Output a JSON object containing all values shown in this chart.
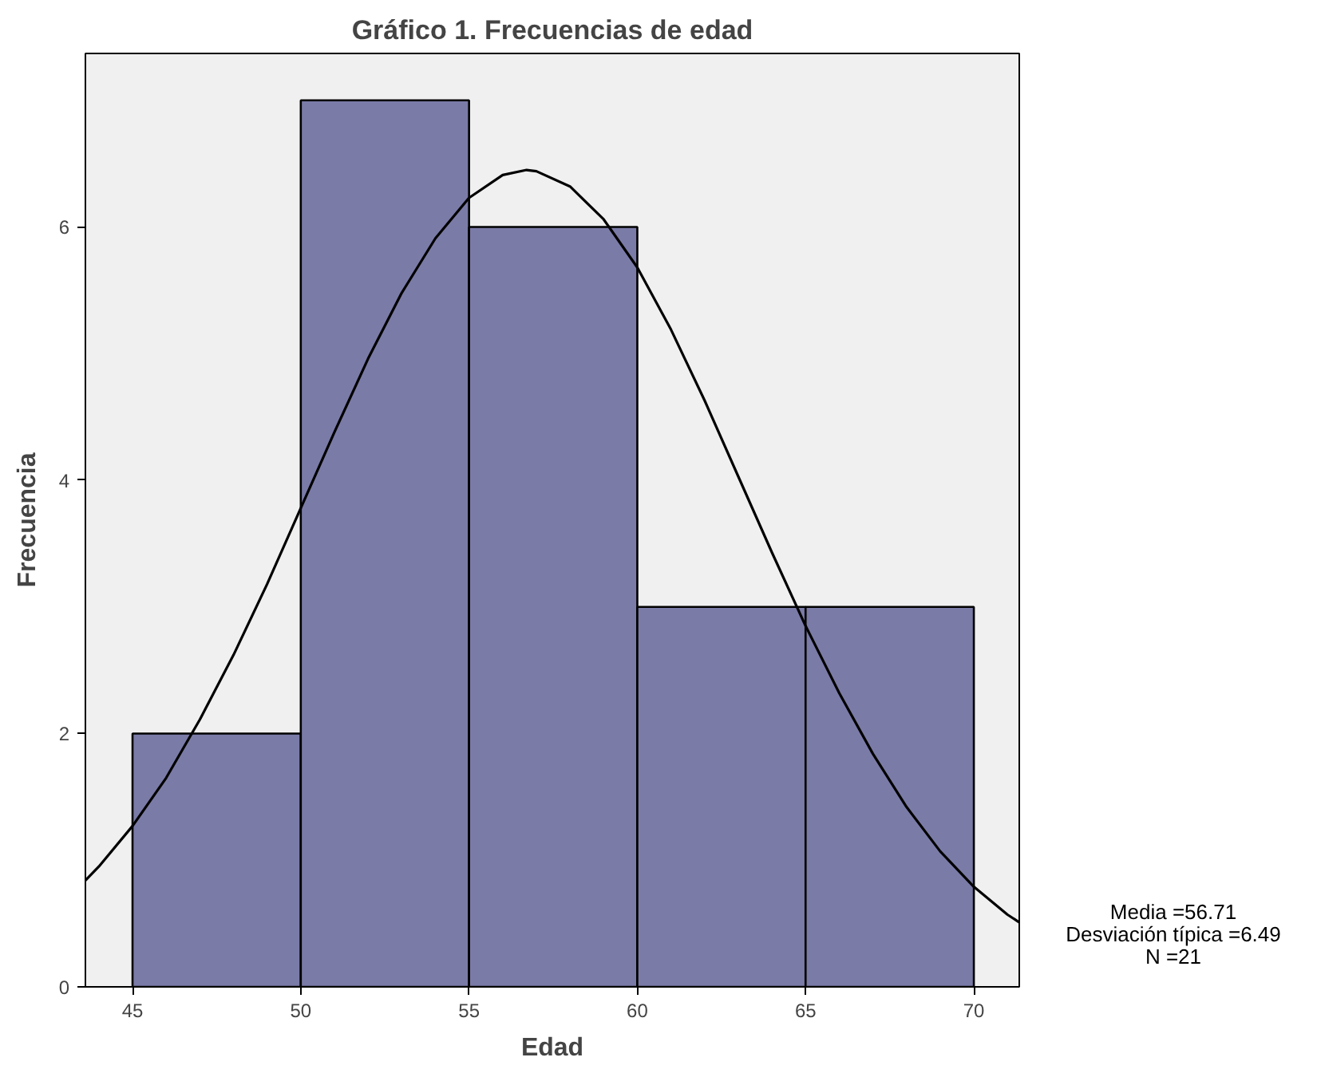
{
  "chart_data": {
    "type": "histogram",
    "title": "Gráfico 1. Frecuencias de edad",
    "xlabel": "Edad",
    "ylabel": "Frecuencia",
    "bins": [
      45,
      50,
      55,
      60,
      65,
      70
    ],
    "values": [
      2,
      7,
      6,
      3,
      3
    ],
    "color": "#7b7ba8",
    "series": [
      {
        "type": "line",
        "color": "#000000",
        "x": [
          43.6,
          44,
          45,
          46,
          47,
          48,
          49,
          50,
          51,
          52,
          53,
          54,
          55,
          56,
          56.71,
          57,
          58,
          59,
          60,
          61,
          62,
          63,
          64,
          65,
          66,
          67,
          68,
          69,
          70,
          71,
          71.35
        ],
        "values": [
          0.84,
          0.95,
          1.27,
          1.65,
          2.11,
          2.62,
          3.18,
          3.78,
          4.38,
          4.96,
          5.48,
          5.91,
          6.23,
          6.41,
          6.45,
          6.44,
          6.32,
          6.06,
          5.68,
          5.19,
          4.63,
          4.03,
          3.43,
          2.85,
          2.32,
          1.84,
          1.42,
          1.07,
          0.79,
          0.57,
          0.51
        ]
      }
    ],
    "xlim": [
      43.6,
      71.35
    ],
    "ylim": [
      0,
      7.37
    ],
    "xticks": [
      45,
      50,
      55,
      60,
      65,
      70
    ],
    "yticks": [
      0,
      2,
      4,
      6
    ],
    "grid": false,
    "annotations": [
      "Media =56.71",
      "Desviación típica =6.49",
      "N =21"
    ]
  }
}
